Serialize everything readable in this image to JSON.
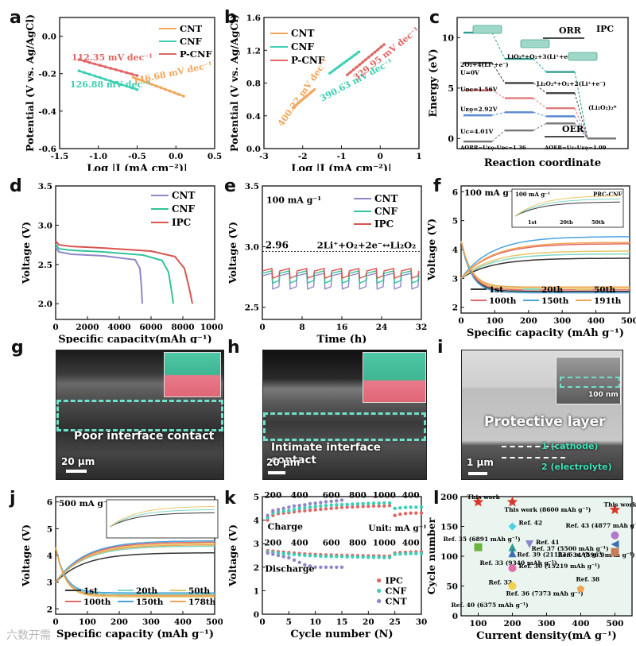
{
  "panels": {
    "a": "a",
    "b": "b",
    "c": "c",
    "d": "d",
    "e": "e",
    "f": "f",
    "g": "g",
    "h": "h",
    "i": "i",
    "j": "j",
    "k": "k",
    "l": "l"
  },
  "colors": {
    "cnt": "#f2a65a",
    "cnf": "#3ccfb3",
    "pcnf": "#e06666",
    "cnt_d": "#8f86c8",
    "cnf_d": "#32c49a",
    "ipc_d": "#d9534f",
    "cyc_1": "#333333",
    "cyc_20": "#7fd7c4",
    "cyc_50": "#e8c76a",
    "cyc_100": "#e36a6a",
    "cyc_150": "#4aa3df",
    "cyc_191": "#f0a552",
    "cyc_178": "#f0a552",
    "k_ipc": "#e06666",
    "k_cnf": "#3ccfb3",
    "k_cnt": "#8f86c8",
    "star": "#d9362b"
  },
  "chart_data": [
    {
      "id": "a",
      "type": "line",
      "xlabel": "Log |J (mA cm⁻²)|",
      "ylabel": "Potential (V vs. Ag/AgCl)",
      "xlim": [
        -1.5,
        0.5
      ],
      "ylim": [
        -0.6,
        0.1
      ],
      "xticks": [
        "-1.5",
        "-1.0",
        "-0.5",
        "0.0",
        "0.5"
      ],
      "yticks": [
        "-0.6",
        "-0.4",
        "-0.2",
        "0.0"
      ],
      "legend": [
        "CNT",
        "CNF",
        "P-CNF"
      ],
      "series": [
        {
          "name": "CNT",
          "x": [
            -0.55,
            0.1
          ],
          "y": [
            -0.22,
            -0.32
          ]
        },
        {
          "name": "CNF",
          "x": [
            -1.25,
            -0.5
          ],
          "y": [
            -0.185,
            -0.285
          ]
        },
        {
          "name": "P-CNF",
          "x": [
            -1.25,
            -0.5
          ],
          "y": [
            -0.125,
            -0.21
          ]
        }
      ],
      "annotations": [
        "112.35 mV dec⁻¹",
        "126.88 mV dec⁻¹",
        "146.68 mV dec⁻¹"
      ]
    },
    {
      "id": "b",
      "type": "line",
      "xlabel": "Log |J (mA cm⁻²)|",
      "ylabel": "Potential (V vs. Ag/AgCl)",
      "xlim": [
        -3,
        1
      ],
      "ylim": [
        0.0,
        1.6
      ],
      "xticks": [
        "-3",
        "-2",
        "-1",
        "0",
        "1"
      ],
      "yticks": [
        "0.0",
        "0.4",
        "0.8",
        "1.2",
        "1.6"
      ],
      "legend": [
        "CNT",
        "CNF",
        "P-CNF"
      ],
      "series": [
        {
          "name": "CNT",
          "x": [
            -2.25,
            -1.7
          ],
          "y": [
            0.5,
            0.72
          ]
        },
        {
          "name": "CNF",
          "x": [
            -1.3,
            -0.55
          ],
          "y": [
            0.92,
            1.18
          ]
        },
        {
          "name": "P-CNF",
          "x": [
            -0.85,
            0.1
          ],
          "y": [
            0.9,
            1.27
          ]
        }
      ],
      "annotations": [
        "400.22 mV dec⁻¹",
        "390.63 mV dec⁻¹",
        "329.95 mV dec⁻¹"
      ]
    },
    {
      "id": "c",
      "type": "diagram",
      "xlabel": "Reaction coordinate",
      "ylabel": "Energy (eV)",
      "yticks": [
        "0",
        "5",
        "10"
      ],
      "labels": [
        "2O₂+4(Li⁺+e⁻)",
        "U=0V",
        "LiO₂*+O₂+3(Li⁺+e⁻)",
        "Uᴅᴄ=1.56V",
        "Li₂O₂*+O₂+2(Li⁺+e⁻)",
        "Uᴇǫ=2.92V",
        "(Li₂O₂)₂*",
        "Uᴄ=4.01V",
        "ΔORR=Uᴇǫ-Uᴅᴄ=1.36",
        "ΔOER=Uᴄ-Uᴇǫ=1.09",
        "ORR",
        "OER",
        "IPC"
      ]
    },
    {
      "id": "d",
      "type": "line",
      "xlabel": "Specific capacity(mAh g⁻¹)",
      "ylabel": "Voltage (V)",
      "xlim": [
        0,
        10000
      ],
      "ylim": [
        1.8,
        3.5
      ],
      "xticks": [
        "0",
        "2000",
        "4000",
        "6000",
        "8000",
        "10000"
      ],
      "yticks": [
        "2.0",
        "2.5",
        "3.0",
        "3.5"
      ],
      "legend": [
        "CNT",
        "CNF",
        "IPC"
      ],
      "series": [
        {
          "name": "CNT",
          "x": [
            0,
            200,
            1000,
            3000,
            5000,
            5300,
            5400,
            5450
          ],
          "y": [
            2.72,
            2.66,
            2.63,
            2.61,
            2.56,
            2.45,
            2.2,
            2.0
          ]
        },
        {
          "name": "CNF",
          "x": [
            0,
            200,
            1000,
            3000,
            5500,
            6700,
            7100,
            7300,
            7400
          ],
          "y": [
            2.76,
            2.7,
            2.68,
            2.66,
            2.62,
            2.55,
            2.4,
            2.15,
            2.0
          ]
        },
        {
          "name": "IPC",
          "x": [
            0,
            200,
            1000,
            3000,
            6000,
            7500,
            8100,
            8400,
            8600
          ],
          "y": [
            2.8,
            2.75,
            2.73,
            2.71,
            2.67,
            2.6,
            2.45,
            2.2,
            2.0
          ]
        }
      ]
    },
    {
      "id": "e",
      "type": "line",
      "xlabel": "Time (h)",
      "ylabel": "Voltage (V)",
      "xlim": [
        0,
        32
      ],
      "ylim": [
        2.4,
        3.5
      ],
      "xticks": [
        "0",
        "8",
        "16",
        "24",
        "32"
      ],
      "yticks": [
        "2.5",
        "3.0",
        "3.5"
      ],
      "legend": [
        "CNT",
        "CNF",
        "IPC"
      ],
      "rate": "100 mA g⁻¹",
      "reference": {
        "value": 2.96,
        "label": "2.96",
        "equation": "2Li⁺+O₂+2e⁻↔Li₂O₂"
      },
      "cycle_period_h": 3.5,
      "series": [
        {
          "name": "CNT",
          "discharge": 2.65,
          "charge": 2.76
        },
        {
          "name": "CNF",
          "discharge": 2.7,
          "charge": 2.78
        },
        {
          "name": "IPC",
          "discharge": 2.74,
          "charge": 2.8
        }
      ]
    },
    {
      "id": "f",
      "type": "line",
      "xlabel": "Specific capacity (mAh g⁻¹)",
      "ylabel": "Voltage (V)",
      "xlim": [
        0,
        500
      ],
      "ylim": [
        1.8,
        6.2
      ],
      "xticks": [
        "0",
        "100",
        "200",
        "300",
        "400",
        "500"
      ],
      "yticks": [
        "2",
        "3",
        "4",
        "5",
        "6"
      ],
      "rate": "100 mA g⁻¹",
      "legend": [
        "1st",
        "20th",
        "50th",
        "100th",
        "150th",
        "191th"
      ],
      "charge_end": [
        3.7,
        3.85,
        3.95,
        4.2,
        4.45,
        4.25
      ],
      "discharge_end": [
        2.55,
        2.7,
        2.65,
        2.6,
        2.5,
        2.7
      ],
      "inset": {
        "rate": "100 mA g⁻¹",
        "title": "PRC-CNF",
        "labels": [
          "1st",
          "20th",
          "50th"
        ]
      }
    },
    {
      "id": "g",
      "type": "image",
      "caption": "Poor interface contact",
      "scale": "20 μm"
    },
    {
      "id": "h",
      "type": "image",
      "caption": "Intimate interface contact",
      "scale": "20 μm"
    },
    {
      "id": "i",
      "type": "image",
      "caption": "Protective layer",
      "scale": "1 μm",
      "inset_scale": "100 nm",
      "labels": [
        "1 (cathode)",
        "2 (electrolyte)"
      ]
    },
    {
      "id": "j",
      "type": "line",
      "xlabel": "Specific capacity (mAh g⁻¹)",
      "ylabel": "Voltage (V)",
      "xlim": [
        0,
        500
      ],
      "ylim": [
        1.8,
        6.2
      ],
      "xticks": [
        "0",
        "100",
        "200",
        "300",
        "400",
        "500"
      ],
      "yticks": [
        "2",
        "3",
        "4",
        "5",
        "6"
      ],
      "rate": "500 mA g⁻¹",
      "legend": [
        "1st",
        "20th",
        "50th",
        "100th",
        "150th",
        "178th"
      ],
      "charge_end": [
        4.1,
        4.35,
        4.45,
        4.5,
        4.55,
        4.4
      ],
      "discharge_end": [
        2.5,
        2.55,
        2.45,
        2.5,
        2.6,
        2.5
      ]
    },
    {
      "id": "k",
      "type": "scatter",
      "xlabel": "Cycle number (N)",
      "ylabel": "Voltage (V)",
      "xlim": [
        0,
        30
      ],
      "ylim": [
        0,
        5
      ],
      "xticks": [
        "0",
        "5",
        "10",
        "15",
        "20",
        "25",
        "30"
      ],
      "yticks": [
        "0",
        "1",
        "2",
        "3",
        "4",
        "5"
      ],
      "legend": [
        "IPC",
        "CNF",
        "CNT"
      ],
      "unit_label": "Unit: mA g⁻¹",
      "charge_label": "Charge",
      "discharge_label": "Discharge",
      "rates_top": [
        "200",
        "400",
        "600",
        "800",
        "1000",
        "400"
      ],
      "rates_bottom": [
        "200",
        "400",
        "600",
        "800",
        "1000",
        "400"
      ],
      "series": [
        {
          "name": "IPC",
          "charge": [
            4.0,
            4.2,
            4.28,
            4.3,
            4.32,
            4.35,
            4.38,
            4.4,
            4.42,
            4.44,
            4.46,
            4.48,
            4.5,
            4.52,
            4.54,
            4.55,
            4.56,
            4.57,
            4.58,
            4.59,
            4.6,
            4.6,
            4.6,
            4.62,
            4.2,
            4.25,
            4.28,
            4.3,
            4.3,
            4.3
          ],
          "discharge": [
            2.7,
            2.68,
            2.66,
            2.64,
            2.62,
            2.6,
            2.58,
            2.56,
            2.55,
            2.54,
            2.53,
            2.52,
            2.52,
            2.51,
            2.5,
            2.5,
            2.5,
            2.49,
            2.49,
            2.48,
            2.48,
            2.48,
            2.47,
            2.47,
            2.6,
            2.62,
            2.63,
            2.64,
            2.65,
            2.65
          ]
        },
        {
          "name": "CNF",
          "charge": [
            4.1,
            4.3,
            4.35,
            4.38,
            4.4,
            4.45,
            4.5,
            4.52,
            4.55,
            4.58,
            4.6,
            4.62,
            4.64,
            4.65,
            4.66,
            4.67,
            4.68,
            4.69,
            4.7,
            4.71,
            4.72,
            4.72,
            4.73,
            4.73,
            4.5,
            4.52,
            4.54,
            4.55,
            4.55,
            4.56
          ],
          "discharge": [
            2.65,
            2.62,
            2.6,
            2.58,
            2.56,
            2.54,
            2.52,
            2.5,
            2.49,
            2.48,
            2.47,
            2.46,
            2.46,
            2.45,
            2.45,
            2.44,
            2.44,
            2.43,
            2.43,
            2.42,
            2.42,
            2.42,
            2.41,
            2.41,
            2.55,
            2.56,
            2.57,
            2.58,
            2.58,
            2.58
          ]
        },
        {
          "name": "CNT",
          "charge": [
            4.2,
            4.4,
            4.45,
            4.5,
            4.55,
            4.6,
            4.62,
            4.65,
            4.7,
            4.72,
            4.75,
            4.78,
            4.8,
            4.82,
            4.85
          ],
          "discharge": [
            2.6,
            2.55,
            2.5,
            2.45,
            2.4,
            2.3,
            2.2,
            2.1,
            2.05,
            2.0,
            2.0,
            2.0,
            2.0,
            2.0,
            2.0
          ]
        }
      ]
    },
    {
      "id": "l",
      "type": "scatter",
      "xlabel": "Current density(mA g⁻¹)",
      "ylabel": "Cycle number",
      "xlim": [
        50,
        550
      ],
      "ylim": [
        0,
        200
      ],
      "xticks": [
        "100",
        "200",
        "300",
        "400",
        "500"
      ],
      "yticks": [
        "0",
        "50",
        "100",
        "150",
        "200"
      ],
      "points": [
        {
          "x": 100,
          "y": 191,
          "label": "This work",
          "shape": "star",
          "color": "#d9362b"
        },
        {
          "x": 200,
          "y": 191,
          "label": "This work (8600 mAh g⁻¹)",
          "shape": "star",
          "color": "#d9362b"
        },
        {
          "x": 500,
          "y": 178,
          "label": "This work",
          "shape": "star",
          "color": "#d9362b"
        },
        {
          "x": 200,
          "y": 150,
          "label": "Ref. 42",
          "shape": "diamond",
          "color": "#4fd0e0"
        },
        {
          "x": 250,
          "y": 120,
          "label": "Ref. 41",
          "shape": "tri-down",
          "color": "#8a88c8"
        },
        {
          "x": 500,
          "y": 135,
          "label": "Ref. 43 (4877 mAh g⁻¹)",
          "shape": "circle",
          "color": "#b07ac8"
        },
        {
          "x": 100,
          "y": 115,
          "label": "Ref. 35 (6891 mAh g⁻¹)",
          "shape": "square",
          "color": "#6db33f"
        },
        {
          "x": 200,
          "y": 115,
          "label": "Ref. 37 (5500 mAh g⁻¹)",
          "shape": "tri-up",
          "color": "#2a9d8f"
        },
        {
          "x": 200,
          "y": 105,
          "label": "Ref. 39 (21153.6 mAh g⁻¹)",
          "shape": "tri-up",
          "color": "#3b6fb6"
        },
        {
          "x": 500,
          "y": 120,
          "label": "Ref. 34 (5963 mAh g⁻¹)",
          "shape": "tri-left",
          "color": "#3b6fb6"
        },
        {
          "x": 500,
          "y": 107,
          "label": "Ref. 33 (9340 mAh g⁻¹)",
          "shape": "square",
          "color": "#c77b5a"
        },
        {
          "x": 200,
          "y": 80,
          "label": "Ref. 30 (15219 mAh g⁻¹)",
          "shape": "circle",
          "color": "#e06fa8"
        },
        {
          "x": 200,
          "y": 50,
          "label": "Ref. 32",
          "shape": "circle",
          "color": "#f2d24a"
        },
        {
          "x": 200,
          "y": 50,
          "label": "Ref. 36 (7373 mAh g⁻¹)",
          "shape": "circle",
          "color": "#f2d24a"
        },
        {
          "x": 400,
          "y": 45,
          "label": "Ref. 38",
          "shape": "pentagon",
          "color": "#f0a552"
        },
        {
          "x": 100,
          "y": 20,
          "label": "Ref. 40 (6375 mAh g⁻¹)",
          "shape": "none",
          "color": "#888888"
        }
      ]
    }
  ],
  "watermark": "六数开需"
}
